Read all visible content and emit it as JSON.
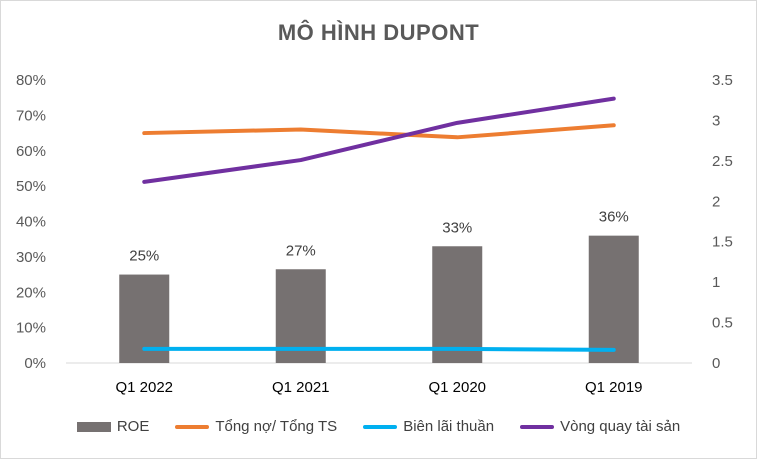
{
  "chart_data": {
    "type": "bar+line",
    "title": "MÔ HÌNH DUPONT",
    "categories": [
      "Q1 2022",
      "Q1 2021",
      "Q1 2020",
      "Q1 2019"
    ],
    "y_left": {
      "ylim": [
        0,
        0.8
      ],
      "ticks": [
        "0%",
        "10%",
        "20%",
        "30%",
        "40%",
        "50%",
        "60%",
        "70%",
        "80%"
      ]
    },
    "y_right": {
      "ylim": [
        0,
        3.5
      ],
      "ticks": [
        "0",
        "0.5",
        "1",
        "1.5",
        "2",
        "2.5",
        "3",
        "3.5"
      ]
    },
    "series": [
      {
        "name": "ROE",
        "kind": "bar",
        "axis": "left",
        "color": "#767171",
        "values": [
          0.25,
          0.265,
          0.33,
          0.36
        ],
        "labels": [
          "25%",
          "27%",
          "33%",
          "36%"
        ]
      },
      {
        "name": "Tổng nợ/ Tổng TS",
        "kind": "line",
        "axis": "left",
        "color": "#ED7D31",
        "values": [
          0.65,
          0.66,
          0.638,
          0.672
        ]
      },
      {
        "name": "Biên lãi thuần",
        "kind": "line",
        "axis": "left",
        "color": "#00B0F0",
        "values": [
          0.04,
          0.04,
          0.04,
          0.037
        ]
      },
      {
        "name": "Vòng quay tài sản",
        "kind": "line",
        "axis": "right",
        "color": "#7030A0",
        "values": [
          2.24,
          2.51,
          2.97,
          3.27
        ]
      }
    ],
    "legend": "bottom",
    "grid": false
  }
}
